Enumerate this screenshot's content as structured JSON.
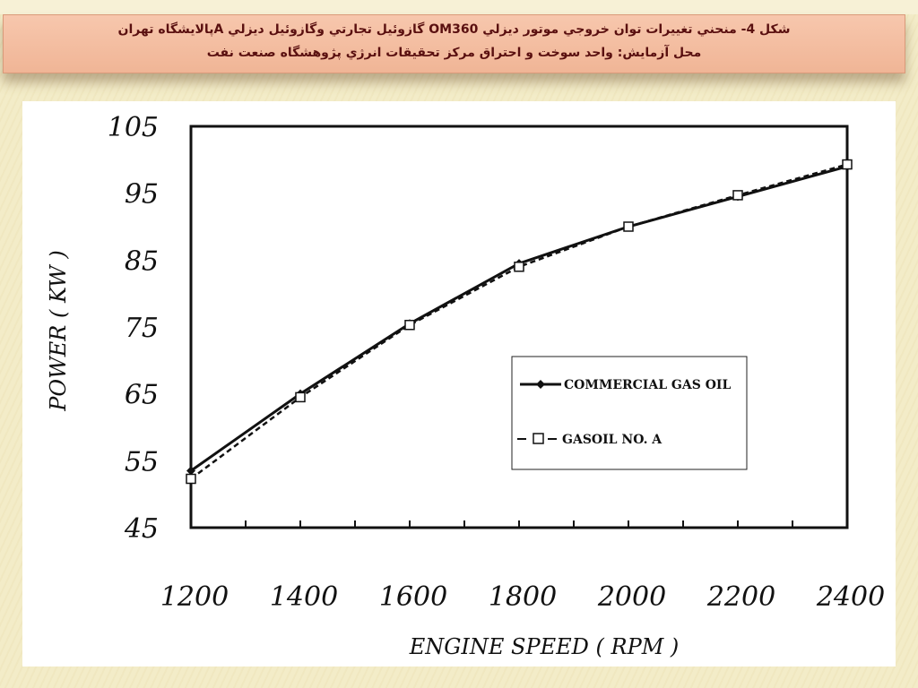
{
  "header": {
    "line1": "شکل 4- منحني تغييرات توان خروجي موتور ديزلي  OM360 گازوئيل تجارتي وگازوئيل ديزلي   Aپالايشگاه تهران",
    "line2": "محل آزمايش: واحد سوخت و احتراق مرکز تحقيقات انرژي پژوهشگاه صنعت نفت"
  },
  "chart_data": {
    "type": "line",
    "title": "",
    "xlabel": "ENGINE SPEED ( RPM )",
    "ylabel": "POWER ( KW )",
    "x": [
      1200,
      1400,
      1600,
      1800,
      2000,
      2200,
      2400
    ],
    "xlim": [
      1200,
      2400
    ],
    "ylim": [
      45,
      105
    ],
    "x_ticks": [
      "1200",
      "1400",
      "1600",
      "1800",
      "2000",
      "2200",
      "2400"
    ],
    "y_ticks": [
      "105",
      "95",
      "85",
      "75",
      "65",
      "55",
      "45"
    ],
    "grid": false,
    "legend_position": "center-right",
    "series": [
      {
        "name": "COMMERCIAL GAS OIL",
        "values": [
          53.5,
          65,
          75.5,
          84.5,
          90,
          94.5,
          99
        ],
        "style": "solid",
        "marker": "diamond",
        "color": "#111111"
      },
      {
        "name": "GASOIL NO. A",
        "values": [
          52.3,
          64.5,
          75.3,
          84,
          90,
          94.7,
          99.3
        ],
        "style": "dashed",
        "marker": "square",
        "color": "#111111"
      }
    ]
  }
}
